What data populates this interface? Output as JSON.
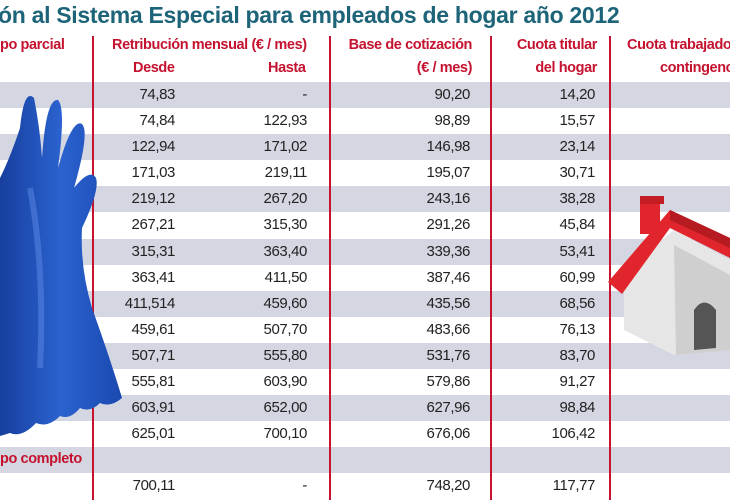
{
  "title": "ón al Sistema Especial para empleados de hogar año 2012",
  "headers": {
    "col0": "po parcial",
    "retribucion": "Retribución mensual (€ / mes)",
    "desde": "Desde",
    "hasta": "Hasta",
    "base_line1": "Base de cotización",
    "base_line2": "(€ / mes)",
    "cuota_titular_line1": "Cuota titular",
    "cuota_titular_line2": "del hogar",
    "cuota_trab_line1": "Cuota trabajado",
    "cuota_trab_line2": "contingenc"
  },
  "sections": {
    "completo": "po completo"
  },
  "rows": [
    [
      "74,83",
      "-",
      "90,20",
      "14,20"
    ],
    [
      "74,84",
      "122,93",
      "98,89",
      "15,57"
    ],
    [
      "122,94",
      "171,02",
      "146,98",
      "23,14"
    ],
    [
      "171,03",
      "219,11",
      "195,07",
      "30,71"
    ],
    [
      "219,12",
      "267,20",
      "243,16",
      "38,28"
    ],
    [
      "267,21",
      "315,30",
      "291,26",
      "45,84"
    ],
    [
      "315,31",
      "363,40",
      "339,36",
      "53,41"
    ],
    [
      "363,41",
      "411,50",
      "387,46",
      "60,99"
    ],
    [
      "411,514",
      "459,60",
      "435,56",
      "68,56"
    ],
    [
      "459,61",
      "507,70",
      "483,66",
      "76,13"
    ],
    [
      "507,71",
      "555,80",
      "531,76",
      "83,70"
    ],
    [
      "555,81",
      "603,90",
      "579,86",
      "91,27"
    ],
    [
      "603,91",
      "652,00",
      "627,96",
      "98,84"
    ],
    [
      "625,01",
      "700,10",
      "676,06",
      "106,42"
    ]
  ],
  "completo_rows": [
    [
      "700,11",
      "-",
      "748,20",
      "117,77"
    ]
  ],
  "colors": {
    "title": "#1d6479",
    "header": "#c4122f",
    "row_alt": "#d4d6e1",
    "glove": "#1f4fb8",
    "roof": "#e0262c"
  },
  "images": {
    "glove": "blue-rubber-glove",
    "house": "red-roof-house"
  }
}
